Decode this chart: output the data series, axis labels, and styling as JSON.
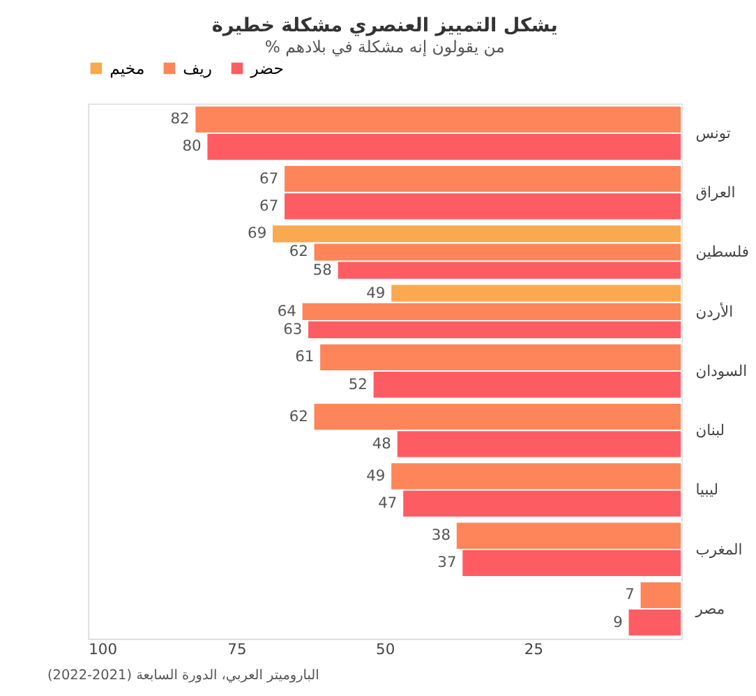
{
  "chart_data": {
    "type": "bar",
    "orientation": "horizontal",
    "title": "يشكل التمييز العنصري مشكلة خطيرة",
    "subtitle": "% من يقولون إنه مشكلة في بلادهم",
    "categories": [
      "تونس",
      "العراق",
      "فلسطين",
      "الأردن",
      "السودان",
      "لبنان",
      "ليبيا",
      "المغرب",
      "مصر"
    ],
    "series": [
      {
        "name": "مخيم",
        "color": "#f9a94f",
        "values": [
          null,
          null,
          69,
          49,
          null,
          null,
          null,
          null,
          null
        ]
      },
      {
        "name": "ريف",
        "color": "#fe855a",
        "values": [
          82,
          67,
          62,
          64,
          61,
          62,
          49,
          38,
          7
        ]
      },
      {
        "name": "حضر",
        "color": "#fe5c63",
        "values": [
          80,
          67,
          58,
          63,
          52,
          48,
          47,
          37,
          9
        ]
      }
    ],
    "xlim": [
      100,
      0
    ],
    "xticks": [
      100,
      75,
      50,
      25
    ],
    "grid": false,
    "legend": "top",
    "data_labels": true,
    "annotations": [
      "الباروميتر العربي، الدورة السابعة (2021-2022)"
    ]
  }
}
